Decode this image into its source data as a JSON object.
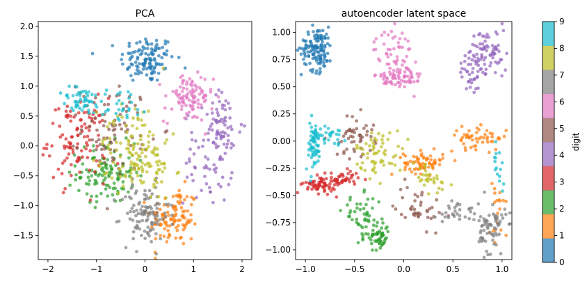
{
  "chart_data": [
    {
      "type": "scatter",
      "title": "PCA",
      "xlabel": "",
      "ylabel": "",
      "xlim": [
        -2.2,
        2.2
      ],
      "ylim": [
        -1.9,
        2.08
      ],
      "xticks": [
        -2,
        -1,
        0,
        1,
        2
      ],
      "yticks": [
        -1.5,
        -1.0,
        -0.5,
        0.0,
        0.5,
        1.0,
        1.5,
        2.0
      ],
      "xtick_labels": [
        "−2",
        "−1",
        "0",
        "1",
        "2"
      ],
      "ytick_labels": [
        "−1.5",
        "−1.0",
        "−0.5",
        "0.0",
        "0.5",
        "1.0",
        "1.5",
        "2.0"
      ],
      "grid": false,
      "point_clusters": [
        {
          "digit": 0,
          "center": [
            0.05,
            1.45
          ],
          "spread": [
            0.28,
            0.2
          ],
          "count": 120
        },
        {
          "digit": 1,
          "center": [
            0.6,
            -1.2
          ],
          "spread": [
            0.25,
            0.25
          ],
          "count": 110
        },
        {
          "digit": 2,
          "center": [
            -0.8,
            -0.45
          ],
          "spread": [
            0.3,
            0.25
          ],
          "count": 120
        },
        {
          "digit": 3,
          "center": [
            -1.4,
            0.1
          ],
          "spread": [
            0.3,
            0.35
          ],
          "count": 110
        },
        {
          "digit": 4,
          "center": [
            1.6,
            0.3
          ],
          "spread": [
            0.2,
            0.3
          ],
          "count": 60
        },
        {
          "digit": 4,
          "center": [
            1.3,
            -0.2
          ],
          "spread": [
            0.25,
            0.4
          ],
          "count": 60
        },
        {
          "digit": 5,
          "center": [
            -0.6,
            0.3
          ],
          "spread": [
            0.35,
            0.35
          ],
          "count": 80
        },
        {
          "digit": 6,
          "center": [
            0.9,
            0.8
          ],
          "spread": [
            0.25,
            0.2
          ],
          "count": 100
        },
        {
          "digit": 7,
          "center": [
            0.0,
            -1.15
          ],
          "spread": [
            0.25,
            0.25
          ],
          "count": 110
        },
        {
          "digit": 8,
          "center": [
            -0.2,
            0.1
          ],
          "spread": [
            0.35,
            0.35
          ],
          "count": 80
        },
        {
          "digit": 8,
          "center": [
            0.0,
            -0.4
          ],
          "spread": [
            0.3,
            0.25
          ],
          "count": 60
        },
        {
          "digit": 9,
          "center": [
            -1.3,
            0.75
          ],
          "spread": [
            0.22,
            0.12
          ],
          "count": 50
        },
        {
          "digit": 9,
          "center": [
            -0.5,
            0.7
          ],
          "spread": [
            0.3,
            0.15
          ],
          "count": 30
        }
      ]
    },
    {
      "type": "scatter",
      "title": "autoencoder latent space",
      "xlabel": "",
      "ylabel": "",
      "xlim": [
        -1.1,
        1.1
      ],
      "ylim": [
        -1.09,
        1.1
      ],
      "xticks": [
        -1.0,
        -0.5,
        0.0,
        0.5,
        1.0
      ],
      "yticks": [
        -1.0,
        -0.75,
        -0.5,
        -0.25,
        0.0,
        0.25,
        0.5,
        0.75,
        1.0
      ],
      "xtick_labels": [
        "−1.0",
        "−0.5",
        "0.0",
        "0.5",
        "1.0"
      ],
      "ytick_labels": [
        "−1.00",
        "−0.75",
        "−0.50",
        "−0.25",
        "0.00",
        "0.25",
        "0.50",
        "0.75",
        "1.00"
      ],
      "grid": false,
      "point_clusters": [
        {
          "digit": 0,
          "center": [
            -0.88,
            0.85
          ],
          "spread": [
            0.08,
            0.1
          ],
          "count": 130
        },
        {
          "digit": 1,
          "center": [
            0.2,
            -0.2
          ],
          "spread": [
            0.1,
            0.05
          ],
          "count": 70
        },
        {
          "digit": 1,
          "center": [
            0.75,
            0.03
          ],
          "spread": [
            0.15,
            0.05
          ],
          "count": 50
        },
        {
          "digit": 1,
          "center": [
            0.95,
            -0.55
          ],
          "spread": [
            0.04,
            0.25
          ],
          "count": 20
        },
        {
          "digit": 2,
          "center": [
            -0.42,
            -0.7
          ],
          "spread": [
            0.1,
            0.1
          ],
          "count": 50
        },
        {
          "digit": 2,
          "center": [
            -0.25,
            -0.88
          ],
          "spread": [
            0.05,
            0.07
          ],
          "count": 50
        },
        {
          "digit": 3,
          "center": [
            -0.85,
            -0.4
          ],
          "spread": [
            0.08,
            0.04
          ],
          "count": 60
        },
        {
          "digit": 3,
          "center": [
            -0.62,
            -0.35
          ],
          "spread": [
            0.08,
            0.04
          ],
          "count": 40
        },
        {
          "digit": 4,
          "center": [
            0.85,
            0.8
          ],
          "spread": [
            0.1,
            0.12
          ],
          "count": 80
        },
        {
          "digit": 4,
          "center": [
            0.68,
            0.62
          ],
          "spread": [
            0.06,
            0.07
          ],
          "count": 30
        },
        {
          "digit": 5,
          "center": [
            -0.5,
            0.05
          ],
          "spread": [
            0.1,
            0.1
          ],
          "count": 50
        },
        {
          "digit": 5,
          "center": [
            0.15,
            -0.6
          ],
          "spread": [
            0.12,
            0.1
          ],
          "count": 40
        },
        {
          "digit": 6,
          "center": [
            -0.1,
            0.8
          ],
          "spread": [
            0.1,
            0.12
          ],
          "count": 60
        },
        {
          "digit": 6,
          "center": [
            -0.05,
            0.57
          ],
          "spread": [
            0.12,
            0.06
          ],
          "count": 60
        },
        {
          "digit": 7,
          "center": [
            0.9,
            -0.8
          ],
          "spread": [
            0.07,
            0.12
          ],
          "count": 70
        },
        {
          "digit": 7,
          "center": [
            0.55,
            -0.65
          ],
          "spread": [
            0.1,
            0.06
          ],
          "count": 30
        },
        {
          "digit": 8,
          "center": [
            -0.25,
            -0.1
          ],
          "spread": [
            0.12,
            0.1
          ],
          "count": 60
        },
        {
          "digit": 8,
          "center": [
            0.25,
            -0.35
          ],
          "spread": [
            0.12,
            0.08
          ],
          "count": 30
        },
        {
          "digit": 9,
          "center": [
            -0.92,
            -0.05
          ],
          "spread": [
            0.04,
            0.12
          ],
          "count": 60
        },
        {
          "digit": 9,
          "center": [
            -0.75,
            0.05
          ],
          "spread": [
            0.08,
            0.04
          ],
          "count": 30
        },
        {
          "digit": 9,
          "center": [
            0.97,
            -0.2
          ],
          "spread": [
            0.03,
            0.1
          ],
          "count": 15
        }
      ]
    }
  ],
  "colorbar": {
    "label": "digit",
    "range": [
      0,
      9
    ],
    "ticks": [
      "0",
      "1",
      "2",
      "3",
      "4",
      "5",
      "6",
      "7",
      "8",
      "9"
    ],
    "colors": [
      "#1f77b4",
      "#ff7f0e",
      "#2ca02c",
      "#d62728",
      "#9467bd",
      "#8c564b",
      "#e377c2",
      "#7f7f7f",
      "#bcbd22",
      "#17becf"
    ],
    "alpha": 0.7
  }
}
